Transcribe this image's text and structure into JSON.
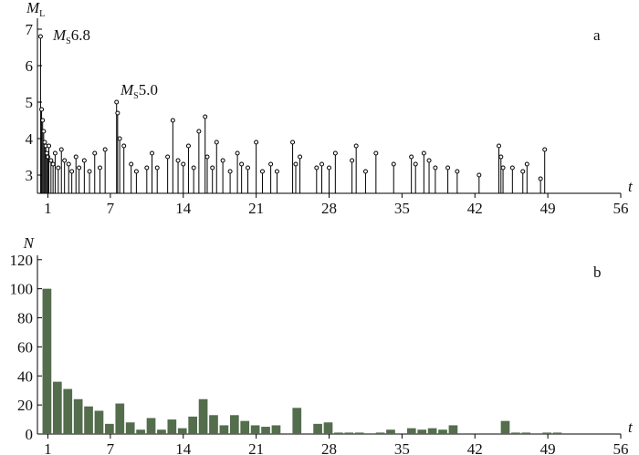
{
  "chart_data": [
    {
      "type": "stem",
      "y_label": {
        "main": "M",
        "sub": "L"
      },
      "panel_label": "a",
      "x_label": "t",
      "annotations": [
        {
          "main": "M",
          "sub": "S",
          "text": "6.8"
        },
        {
          "main": "M",
          "sub": "S",
          "text": "5.0"
        }
      ],
      "x": [
        0.3,
        0.4,
        0.5,
        0.6,
        0.7,
        0.8,
        0.9,
        1.0,
        1.1,
        1.3,
        1.5,
        1.7,
        2.0,
        2.3,
        2.6,
        3.0,
        3.3,
        3.7,
        4.0,
        4.5,
        5.0,
        5.5,
        6.0,
        6.5,
        7.6,
        7.7,
        7.9,
        8.3,
        9.0,
        9.5,
        10.5,
        11.0,
        11.5,
        12.5,
        13.0,
        13.5,
        14.0,
        14.5,
        15.0,
        15.5,
        16.1,
        16.3,
        16.8,
        17.2,
        17.8,
        18.5,
        19.2,
        19.6,
        20.2,
        21.0,
        21.6,
        22.4,
        23.0,
        24.5,
        24.8,
        25.2,
        26.8,
        27.3,
        28.0,
        28.6,
        30.2,
        30.6,
        31.5,
        32.5,
        34.2,
        35.9,
        36.3,
        37.1,
        37.6,
        38.2,
        39.4,
        40.3,
        42.4,
        44.3,
        44.5,
        44.7,
        45.6,
        46.6,
        47.0,
        48.3,
        48.7
      ],
      "values": [
        6.8,
        4.8,
        4.5,
        4.2,
        3.9,
        3.8,
        3.6,
        3.5,
        3.8,
        3.4,
        3.3,
        3.6,
        3.2,
        3.7,
        3.4,
        3.3,
        3.1,
        3.5,
        3.2,
        3.4,
        3.1,
        3.6,
        3.2,
        3.7,
        5.0,
        4.7,
        4.0,
        3.8,
        3.3,
        3.1,
        3.2,
        3.6,
        3.2,
        3.5,
        4.5,
        3.4,
        3.3,
        3.8,
        3.2,
        4.2,
        4.6,
        3.5,
        3.2,
        3.9,
        3.4,
        3.1,
        3.6,
        3.3,
        3.2,
        3.9,
        3.1,
        3.3,
        3.1,
        3.9,
        3.3,
        3.5,
        3.2,
        3.3,
        3.2,
        3.6,
        3.4,
        3.8,
        3.1,
        3.6,
        3.3,
        3.5,
        3.3,
        3.6,
        3.4,
        3.2,
        3.2,
        3.1,
        3.0,
        3.8,
        3.5,
        3.2,
        3.2,
        3.1,
        3.3,
        2.9,
        3.7
      ],
      "xlim": [
        0,
        56
      ],
      "xticks": [
        1,
        7,
        14,
        21,
        28,
        35,
        42,
        49,
        56
      ],
      "ylim": [
        2.5,
        7.3
      ],
      "yticks": [
        3,
        4,
        5,
        6,
        7
      ],
      "color": "#000000"
    },
    {
      "type": "bar",
      "y_label": "N",
      "panel_label": "b",
      "x_label": "t",
      "x": [
        1,
        2,
        3,
        4,
        5,
        6,
        7,
        8,
        9,
        10,
        11,
        12,
        13,
        14,
        15,
        16,
        17,
        18,
        19,
        20,
        21,
        22,
        23,
        24,
        25,
        26,
        27,
        28,
        29,
        30,
        31,
        32,
        33,
        34,
        35,
        36,
        37,
        38,
        39,
        40,
        41,
        42,
        43,
        44,
        45,
        46,
        47,
        48,
        49,
        50
      ],
      "values": [
        100,
        36,
        31,
        24,
        19,
        16,
        7,
        21,
        8,
        3,
        11,
        3,
        10,
        4,
        12,
        24,
        13,
        6,
        13,
        9,
        6,
        5,
        6,
        0,
        18,
        0,
        7,
        8,
        1,
        1,
        1,
        0,
        1,
        3,
        0,
        4,
        3,
        4,
        3,
        6,
        0,
        0,
        0,
        0,
        9,
        1,
        1,
        0,
        1,
        1
      ],
      "xlim": [
        0,
        56
      ],
      "xticks": [
        1,
        7,
        14,
        21,
        28,
        35,
        42,
        49,
        56
      ],
      "ylim": [
        0,
        123
      ],
      "yticks": [
        0,
        20,
        40,
        60,
        80,
        100,
        120
      ],
      "color": "#536d4d"
    }
  ]
}
